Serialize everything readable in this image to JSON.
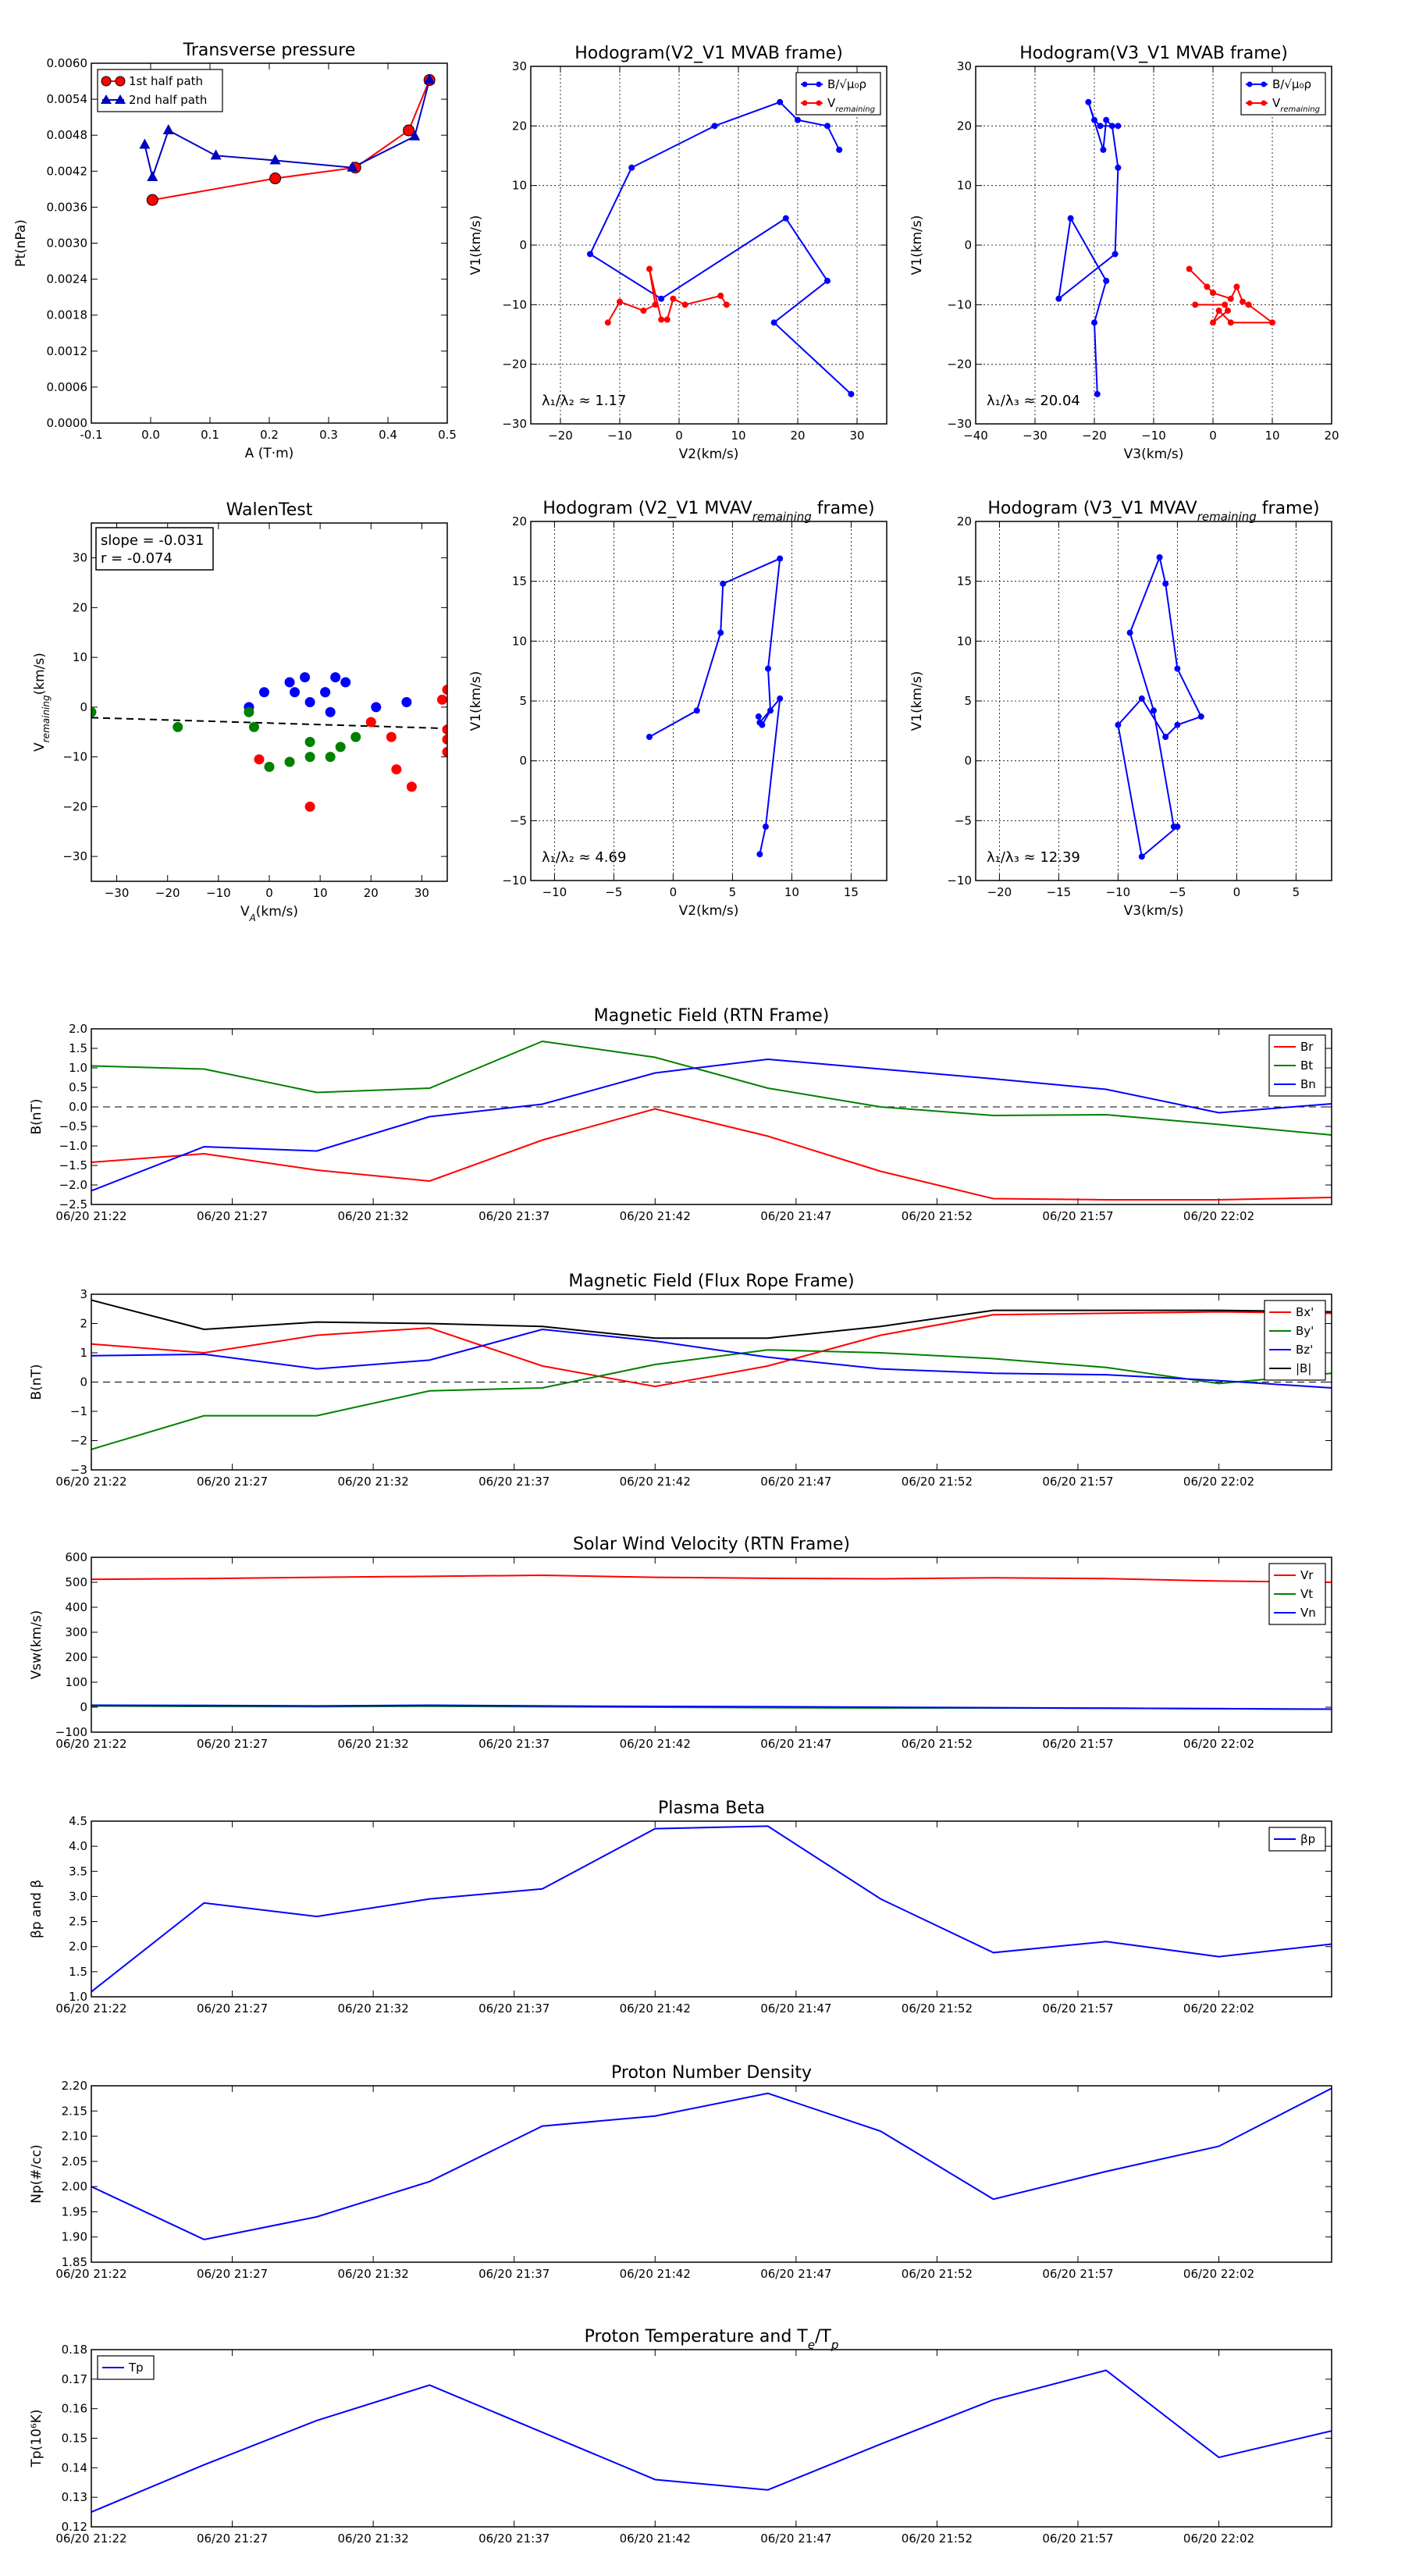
{
  "chart_data": [
    {
      "id": "tp",
      "type": "scatter",
      "title": "Transverse pressure",
      "xlabel": "A (T·m)",
      "ylabel": "Pt(nPa)",
      "xlim": [
        -0.1,
        0.5
      ],
      "ylim": [
        0,
        0.006
      ],
      "xticks": [
        -0.1,
        0.0,
        0.1,
        0.2,
        0.3,
        0.4,
        0.5
      ],
      "xtick_labels": [
        "-0.1",
        "0.0",
        "0.1",
        "0.2",
        "0.3",
        "0.4",
        "0.5"
      ],
      "yticks": [
        0,
        0.0006,
        0.0012,
        0.0018,
        0.0024,
        0.003,
        0.0036,
        0.0042,
        0.0048,
        0.0054,
        0.006
      ],
      "ytick_labels": [
        "0.0000",
        "0.0006",
        "0.0012",
        "0.0018",
        "0.0024",
        "0.0030",
        "0.0036",
        "0.0042",
        "0.0048",
        "0.0054",
        "0.0060"
      ],
      "grid": false,
      "legend": "top-left",
      "series": [
        {
          "name": "1st half path",
          "color": "#ff0000",
          "marker": "circle",
          "x": [
            0.003,
            0.21,
            0.345,
            0.435,
            0.47
          ],
          "y": [
            0.00372,
            0.00408,
            0.00426,
            0.00488,
            0.00572
          ]
        },
        {
          "name": "2nd half path",
          "color": "#0000bf",
          "marker": "triangle",
          "x": [
            0.47,
            0.445,
            0.34,
            0.21,
            0.11,
            0.03,
            0.003,
            -0.01
          ],
          "y": [
            0.00572,
            0.00478,
            0.00426,
            0.00438,
            0.00446,
            0.00488,
            0.0041,
            0.00464
          ]
        }
      ]
    },
    {
      "id": "h1",
      "type": "line",
      "title": "Hodogram(V2_V1 MVAB frame)",
      "xlabel": "V2(km/s)",
      "ylabel": "V1(km/s)",
      "xlim": [
        -25,
        35
      ],
      "ylim": [
        -30,
        30
      ],
      "xticks": [
        -20,
        -10,
        0,
        10,
        20,
        30
      ],
      "xtick_labels": [
        "−20",
        "−10",
        "0",
        "10",
        "20",
        "30"
      ],
      "yticks": [
        -30,
        -20,
        -10,
        0,
        10,
        20,
        30
      ],
      "ytick_labels": [
        "−30",
        "−20",
        "−10",
        "0",
        "10",
        "20",
        "30"
      ],
      "grid": true,
      "legend": "top-right",
      "annotation": "λ₁/λ₂ ≈ 1.17",
      "series": [
        {
          "name": "B/√μ₀ρ",
          "color": "#0000ff",
          "x": [
            29,
            16,
            25,
            18,
            -3,
            -15,
            -8,
            6,
            17,
            20,
            25,
            27
          ],
          "y": [
            -25,
            -13,
            -6,
            4.5,
            -9,
            -1.5,
            13,
            20,
            24,
            21,
            20,
            16
          ]
        },
        {
          "name": "V",
          "name_sub": "remaining",
          "color": "#ff0000",
          "x": [
            -12,
            -10,
            -6,
            -4,
            -5,
            -3,
            -2,
            -1,
            1,
            7,
            8
          ],
          "y": [
            -13,
            -9.5,
            -11,
            -10,
            -4,
            -12.5,
            -12.5,
            -9,
            -10,
            -8.5,
            -10
          ]
        }
      ]
    },
    {
      "id": "h2",
      "type": "line",
      "title": "Hodogram(V3_V1 MVAB frame)",
      "xlabel": "V3(km/s)",
      "ylabel": "V1(km/s)",
      "xlim": [
        -40,
        20
      ],
      "ylim": [
        -30,
        30
      ],
      "xticks": [
        -40,
        -30,
        -20,
        -10,
        0,
        10,
        20
      ],
      "xtick_labels": [
        "−40",
        "−30",
        "−20",
        "−10",
        "0",
        "10",
        "20"
      ],
      "yticks": [
        -30,
        -20,
        -10,
        0,
        10,
        20,
        30
      ],
      "ytick_labels": [
        "−30",
        "−20",
        "−10",
        "0",
        "10",
        "20",
        "30"
      ],
      "grid": true,
      "legend": "top-right",
      "annotation": "λ₁/λ₃ ≈ 20.04",
      "series": [
        {
          "name": "B/√μ₀ρ",
          "color": "#0000ff",
          "x": [
            -19.5,
            -20,
            -18,
            -24,
            -26,
            -16.5,
            -16,
            -17,
            -18,
            -18.5,
            -21,
            -20,
            -19,
            -16
          ],
          "y": [
            -25,
            -13,
            -6,
            4.5,
            -9,
            -1.5,
            13,
            20,
            21,
            16,
            24,
            21,
            20,
            20
          ]
        },
        {
          "name": "V",
          "name_sub": "remaining",
          "color": "#ff0000",
          "x": [
            -4,
            -1,
            0,
            3,
            4,
            5,
            6,
            10,
            3,
            1,
            0,
            2.5,
            2,
            -3
          ],
          "y": [
            -4,
            -7,
            -8,
            -9,
            -7,
            -9.5,
            -10,
            -13,
            -13,
            -11,
            -13,
            -11,
            -10,
            -10
          ]
        }
      ]
    },
    {
      "id": "walen",
      "type": "scatter",
      "title": "WalenTest",
      "xlabel": "V",
      "xlabel_sub": "A",
      "xlabel_rest": "(km/s)",
      "ylabel": "V",
      "ylabel_sub": "remaining",
      "ylabel_rest": "(km/s)",
      "xlim": [
        -35,
        35
      ],
      "ylim": [
        -35,
        37
      ],
      "xticks": [
        -30,
        -20,
        -10,
        0,
        10,
        20,
        30
      ],
      "xtick_labels": [
        "−30",
        "−20",
        "−10",
        "0",
        "10",
        "20",
        "30"
      ],
      "yticks": [
        -30,
        -20,
        -10,
        0,
        10,
        20,
        30
      ],
      "ytick_labels": [
        "−30",
        "−20",
        "−10",
        "0",
        "10",
        "20",
        "30"
      ],
      "grid": false,
      "annotation_lines": [
        "slope = -0.031",
        "r = -0.074"
      ],
      "fit": {
        "slope": -0.031,
        "intercept": -3.2
      },
      "series": [
        {
          "color": "#0000ff",
          "x": [
            -4,
            -1,
            4,
            7,
            8,
            11,
            12,
            13,
            15,
            21,
            27,
            5,
            11
          ],
          "y": [
            0,
            3,
            5,
            6,
            1,
            3,
            -1,
            6,
            5,
            0,
            1,
            3,
            3
          ]
        },
        {
          "color": "#008000",
          "x": [
            -35,
            -18,
            -4,
            -3,
            0,
            4,
            8,
            8,
            12,
            14,
            17
          ],
          "y": [
            -1,
            -4,
            -1,
            -4,
            -12,
            -11,
            -10,
            -7,
            -10,
            -8,
            -6
          ]
        },
        {
          "color": "#ff0000",
          "x": [
            -2,
            8,
            20,
            24,
            25,
            28,
            34,
            35,
            35,
            35,
            35
          ],
          "y": [
            -10.5,
            -20,
            -3,
            -6,
            -12.5,
            -16,
            1.5,
            3.5,
            -6.5,
            -9,
            -4.5
          ]
        }
      ]
    },
    {
      "id": "h3",
      "type": "line",
      "title": "Hodogram (V2_V1 MVAV",
      "title_sub": "remaining",
      "title_rest": " frame)",
      "xlabel": "V2(km/s)",
      "ylabel": "V1(km/s)",
      "xlim": [
        -12,
        18
      ],
      "ylim": [
        -10,
        20
      ],
      "xticks": [
        -10,
        -5,
        0,
        5,
        10,
        15
      ],
      "xtick_labels": [
        "−10",
        "−5",
        "0",
        "5",
        "10",
        "15"
      ],
      "yticks": [
        -10,
        -5,
        0,
        5,
        10,
        15,
        20
      ],
      "ytick_labels": [
        "−10",
        "−5",
        "0",
        "5",
        "10",
        "15",
        "20"
      ],
      "grid": true,
      "annotation": "λ₁/λ₂ ≈ 4.69",
      "series": [
        {
          "color": "#0000ff",
          "x": [
            -2,
            2,
            4,
            4.2,
            9,
            8,
            8.2,
            7.5,
            7.2,
            7.3,
            9,
            7.8,
            7.3
          ],
          "y": [
            2,
            4.2,
            10.7,
            14.8,
            16.9,
            7.7,
            4.2,
            3,
            3.7,
            3.2,
            5.2,
            -5.5,
            -7.8
          ]
        }
      ]
    },
    {
      "id": "h4",
      "type": "line",
      "title": "Hodogram (V3_V1 MVAV",
      "title_sub": "remaining",
      "title_rest": " frame)",
      "xlabel": "V3(km/s)",
      "ylabel": "V1(km/s)",
      "xlim": [
        -22,
        8
      ],
      "ylim": [
        -10,
        20
      ],
      "xticks": [
        -20,
        -15,
        -10,
        -5,
        0,
        5
      ],
      "xtick_labels": [
        "−20",
        "−15",
        "−10",
        "−5",
        "0",
        "5"
      ],
      "yticks": [
        -10,
        -5,
        0,
        5,
        10,
        15,
        20
      ],
      "ytick_labels": [
        "−10",
        "−5",
        "0",
        "5",
        "10",
        "15",
        "20"
      ],
      "grid": true,
      "annotation": "λ₁/λ₃ ≈ 12.39",
      "series": [
        {
          "color": "#0000ff",
          "x": [
            -5,
            -8,
            -10,
            -8,
            -6,
            -5,
            -3,
            -5,
            -6,
            -6.5,
            -9,
            -7,
            -5.3
          ],
          "y": [
            -5.5,
            -8,
            3,
            5.2,
            2,
            3,
            3.7,
            7.7,
            14.8,
            17,
            10.7,
            4.2,
            -5.5
          ]
        }
      ]
    },
    {
      "id": "mf",
      "type": "line",
      "title": "Magnetic Field (RTN Frame)",
      "ylabel": "B(nT)",
      "ylim": [
        -2.5,
        2.0
      ],
      "yticks": [
        -2.5,
        -2.0,
        -1.5,
        -1.0,
        -0.5,
        0.0,
        0.5,
        1.0,
        1.5,
        2.0
      ],
      "ytick_labels": [
        "−2.5",
        "−2.0",
        "−1.5",
        "−1.0",
        "−0.5",
        "0.0",
        "0.5",
        "1.0",
        "1.5",
        "2.0"
      ],
      "time_x": true,
      "zero_line": true,
      "legend": "top-right",
      "series": [
        {
          "name": "Br",
          "color": "#ff0000",
          "values": [
            -1.42,
            -1.2,
            -1.62,
            -1.9,
            -0.85,
            -0.05,
            -0.75,
            -1.65,
            -2.35,
            -2.38,
            -2.38,
            -2.32
          ]
        },
        {
          "name": "Bt",
          "color": "#008000",
          "values": [
            1.05,
            0.97,
            0.37,
            0.48,
            1.68,
            1.27,
            0.48,
            0.0,
            -0.22,
            -0.2,
            -0.45,
            -0.72
          ]
        },
        {
          "name": "Bn",
          "color": "#0000ff",
          "values": [
            -2.15,
            -1.02,
            -1.13,
            -0.25,
            0.07,
            0.87,
            1.22,
            0.97,
            0.72,
            0.45,
            -0.15,
            0.08
          ]
        }
      ]
    },
    {
      "id": "fr",
      "type": "line",
      "title": "Magnetic Field (Flux Rope Frame)",
      "ylabel": "B(nT)",
      "ylim": [
        -3,
        3
      ],
      "yticks": [
        -3,
        -2,
        -1,
        0,
        1,
        2,
        3
      ],
      "ytick_labels": [
        "−3",
        "−2",
        "−1",
        "0",
        "1",
        "2",
        "3"
      ],
      "time_x": true,
      "zero_line": true,
      "legend": "top-right",
      "series": [
        {
          "name": "Bx'",
          "color": "#ff0000",
          "values": [
            1.3,
            1.0,
            1.6,
            1.85,
            0.55,
            -0.15,
            0.55,
            1.6,
            2.3,
            2.35,
            2.4,
            2.35
          ]
        },
        {
          "name": "By'",
          "color": "#008000",
          "values": [
            -2.3,
            -1.15,
            -1.15,
            -0.3,
            -0.2,
            0.6,
            1.1,
            1.0,
            0.8,
            0.5,
            -0.05,
            0.3
          ]
        },
        {
          "name": "Bz'",
          "color": "#0000ff",
          "values": [
            0.9,
            0.95,
            0.45,
            0.75,
            1.8,
            1.4,
            0.85,
            0.45,
            0.3,
            0.25,
            0.05,
            -0.2
          ]
        },
        {
          "name": "|B|",
          "color": "#000000",
          "values": [
            2.8,
            1.8,
            2.05,
            2.0,
            1.9,
            1.5,
            1.5,
            1.9,
            2.45,
            2.45,
            2.45,
            2.4
          ]
        }
      ]
    },
    {
      "id": "sw",
      "type": "line",
      "title": "Solar Wind Velocity (RTN Frame)",
      "ylabel": "Vsw(km/s)",
      "ylim": [
        -100,
        600
      ],
      "yticks": [
        -100,
        0,
        100,
        200,
        300,
        400,
        500,
        600
      ],
      "ytick_labels": [
        "−100",
        "0",
        "100",
        "200",
        "300",
        "400",
        "500",
        "600"
      ],
      "time_x": true,
      "legend": "top-right",
      "series": [
        {
          "name": "Vr",
          "color": "#ff0000",
          "values": [
            512,
            515,
            520,
            524,
            528,
            520,
            516,
            514,
            518,
            515,
            505,
            500
          ]
        },
        {
          "name": "Vt",
          "color": "#008000",
          "values": [
            5,
            3,
            2,
            4,
            2,
            0,
            -2,
            -3,
            -3,
            -4,
            -6,
            -8
          ]
        },
        {
          "name": "Vn",
          "color": "#0000ff",
          "values": [
            8,
            7,
            5,
            8,
            5,
            3,
            2,
            0,
            -2,
            -4,
            -6,
            -8
          ]
        }
      ]
    },
    {
      "id": "pb",
      "type": "line",
      "title": "Plasma Beta",
      "ylabel": "βp and β",
      "ylim": [
        1.0,
        4.5
      ],
      "yticks": [
        1.0,
        1.5,
        2.0,
        2.5,
        3.0,
        3.5,
        4.0,
        4.5
      ],
      "ytick_labels": [
        "1.0",
        "1.5",
        "2.0",
        "2.5",
        "3.0",
        "3.5",
        "4.0",
        "4.5"
      ],
      "time_x": true,
      "legend": "top-right",
      "series": [
        {
          "name": "βp",
          "color": "#0000ff",
          "values": [
            1.1,
            2.87,
            2.6,
            2.95,
            3.15,
            4.35,
            4.4,
            2.95,
            1.88,
            2.1,
            1.8,
            2.05
          ]
        }
      ]
    },
    {
      "id": "pn",
      "type": "line",
      "title": "Proton Number Density",
      "ylabel": "Np(#/cc)",
      "ylim": [
        1.85,
        2.2
      ],
      "yticks": [
        1.85,
        1.9,
        1.95,
        2.0,
        2.05,
        2.1,
        2.15,
        2.2
      ],
      "ytick_labels": [
        "1.85",
        "1.90",
        "1.95",
        "2.00",
        "2.05",
        "2.10",
        "2.15",
        "2.20"
      ],
      "time_x": true,
      "series": [
        {
          "color": "#0000ff",
          "values": [
            2.0,
            1.895,
            1.94,
            2.01,
            2.12,
            2.14,
            2.185,
            2.11,
            1.975,
            2.03,
            2.08,
            2.195
          ]
        }
      ]
    },
    {
      "id": "pt",
      "type": "line",
      "title": "Proton Temperature and T",
      "title_sub": "e",
      "title_mid": "/T",
      "title_sub2": "p",
      "ylabel": "Tp(10⁶K)",
      "ylim": [
        0.12,
        0.18
      ],
      "yticks": [
        0.12,
        0.13,
        0.14,
        0.15,
        0.16,
        0.17,
        0.18
      ],
      "ytick_labels": [
        "0.12",
        "0.13",
        "0.14",
        "0.15",
        "0.16",
        "0.17",
        "0.18"
      ],
      "time_x": true,
      "legend": "top-left",
      "series": [
        {
          "name": "Tp",
          "color": "#0000ff",
          "values": [
            0.125,
            0.141,
            0.156,
            0.168,
            0.152,
            0.136,
            0.1325,
            0.148,
            0.163,
            0.173,
            0.1435,
            0.1525
          ]
        }
      ]
    }
  ],
  "time_axis": {
    "tick_labels": [
      "06/20 21:22",
      "06/20 21:27",
      "06/20 21:32",
      "06/20 21:37",
      "06/20 21:42",
      "06/20 21:47",
      "06/20 21:52",
      "06/20 21:57",
      "06/20 22:02"
    ],
    "range_minutes": [
      0,
      44
    ],
    "tick_minutes": [
      0,
      5,
      10,
      15,
      20,
      25,
      30,
      35,
      40
    ],
    "sample_minutes": [
      0,
      4,
      8,
      12,
      16,
      20,
      24,
      28,
      32,
      36,
      40,
      44
    ]
  }
}
